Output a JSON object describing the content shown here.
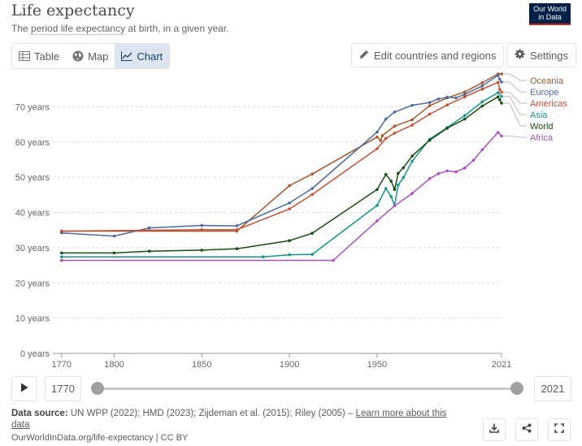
{
  "header": {
    "title": "Life expectancy",
    "subtitle_prefix": "The ",
    "subtitle_term": "period life expectancy",
    "subtitle_suffix": " at birth, in a given year.",
    "logo_line1": "Our World",
    "logo_line2": "in Data"
  },
  "tabs": [
    {
      "label": "Table",
      "icon": "table-icon"
    },
    {
      "label": "Map",
      "icon": "globe-icon"
    },
    {
      "label": "Chart",
      "icon": "line-chart-icon",
      "active": true
    }
  ],
  "toolbar": {
    "edit_label": "Edit countries and regions",
    "settings_label": "Settings"
  },
  "timeline": {
    "start_year": "1770",
    "end_year": "2021"
  },
  "footer": {
    "source_label": "Data source:",
    "source_text": " UN WPP (2022); HMD (2023); Zijdeman et al. (2015); Riley (2005) – ",
    "learn_more": "Learn more about this data",
    "url": "OurWorldInData.org/life-expectancy | CC BY"
  },
  "colors": {
    "Oceania": "#a2572f",
    "Europe": "#4c6a9c",
    "Americas": "#c15035",
    "Asia": "#18928b",
    "World": "#194d12",
    "Africa": "#a652ba"
  },
  "chart_data": {
    "type": "line",
    "ylim": [
      0,
      80
    ],
    "xlim": [
      1765,
      2021
    ],
    "y_ticks": [
      0,
      10,
      20,
      30,
      40,
      50,
      60,
      70
    ],
    "y_tick_labels": [
      "0 years",
      "10 years",
      "20 years",
      "30 years",
      "40 years",
      "50 years",
      "60 years",
      "70 years"
    ],
    "x_ticks": [
      1770,
      1800,
      1850,
      1900,
      1950,
      2021
    ],
    "x_tick_labels": [
      "1770",
      "1800",
      "1850",
      "1900",
      "1950",
      "2021"
    ],
    "grid": "horizontal dotted",
    "legend_placement": "right (end labels)",
    "series": [
      {
        "name": "Oceania",
        "points": [
          [
            1770,
            34.7
          ],
          [
            1870,
            34.7
          ],
          [
            1900,
            47.6
          ],
          [
            1913,
            50.9
          ],
          [
            1950,
            61.4
          ],
          [
            1952,
            60.4
          ],
          [
            1953,
            61.8
          ],
          [
            1960,
            64.5
          ],
          [
            1970,
            66.3
          ],
          [
            1980,
            70.3
          ],
          [
            1990,
            72.5
          ],
          [
            2000,
            74.2
          ],
          [
            2010,
            76.8
          ],
          [
            2019,
            79.3
          ],
          [
            2021,
            79.3
          ]
        ]
      },
      {
        "name": "Europe",
        "points": [
          [
            1770,
            34.2
          ],
          [
            1800,
            33.3
          ],
          [
            1820,
            35.6
          ],
          [
            1850,
            36.3
          ],
          [
            1870,
            36.2
          ],
          [
            1900,
            42.7
          ],
          [
            1913,
            46.8
          ],
          [
            1950,
            62.8
          ],
          [
            1955,
            66.5
          ],
          [
            1960,
            68.5
          ],
          [
            1970,
            70.4
          ],
          [
            1980,
            71.2
          ],
          [
            1985,
            72.2
          ],
          [
            1990,
            72.7
          ],
          [
            1995,
            72.5
          ],
          [
            2000,
            73.5
          ],
          [
            2010,
            75.9
          ],
          [
            2019,
            78.9
          ],
          [
            2020,
            77.8
          ],
          [
            2021,
            77.0
          ]
        ]
      },
      {
        "name": "Americas",
        "points": [
          [
            1770,
            34.7
          ],
          [
            1850,
            35.1
          ],
          [
            1870,
            35.1
          ],
          [
            1900,
            41.0
          ],
          [
            1913,
            45.1
          ],
          [
            1950,
            58.1
          ],
          [
            1955,
            61.0
          ],
          [
            1960,
            62.5
          ],
          [
            1970,
            64.8
          ],
          [
            1980,
            67.9
          ],
          [
            1990,
            70.5
          ],
          [
            2000,
            72.8
          ],
          [
            2010,
            75.0
          ],
          [
            2019,
            76.9
          ],
          [
            2020,
            74.9
          ],
          [
            2021,
            74.1
          ]
        ]
      },
      {
        "name": "Asia",
        "points": [
          [
            1770,
            27.4
          ],
          [
            1885,
            27.4
          ],
          [
            1900,
            28.0
          ],
          [
            1913,
            28.1
          ],
          [
            1950,
            42.0
          ],
          [
            1955,
            46.8
          ],
          [
            1958,
            44.5
          ],
          [
            1960,
            42.0
          ],
          [
            1962,
            47.8
          ],
          [
            1965,
            49.9
          ],
          [
            1970,
            54.5
          ],
          [
            1980,
            60.8
          ],
          [
            1990,
            64.1
          ],
          [
            2000,
            67.5
          ],
          [
            2010,
            71.4
          ],
          [
            2019,
            74.0
          ],
          [
            2021,
            72.9
          ]
        ]
      },
      {
        "name": "World",
        "points": [
          [
            1770,
            28.5
          ],
          [
            1800,
            28.5
          ],
          [
            1820,
            29.0
          ],
          [
            1850,
            29.3
          ],
          [
            1870,
            29.7
          ],
          [
            1900,
            32.0
          ],
          [
            1913,
            34.1
          ],
          [
            1950,
            46.5
          ],
          [
            1955,
            50.8
          ],
          [
            1958,
            48.9
          ],
          [
            1960,
            46.5
          ],
          [
            1962,
            51.1
          ],
          [
            1965,
            52.7
          ],
          [
            1970,
            56.0
          ],
          [
            1980,
            60.5
          ],
          [
            1990,
            63.9
          ],
          [
            2000,
            66.5
          ],
          [
            2010,
            70.2
          ],
          [
            2019,
            72.8
          ],
          [
            2020,
            72.0
          ],
          [
            2021,
            71.0
          ]
        ]
      },
      {
        "name": "Africa",
        "points": [
          [
            1770,
            26.4
          ],
          [
            1925,
            26.4
          ],
          [
            1950,
            37.6
          ],
          [
            1960,
            41.9
          ],
          [
            1970,
            45.4
          ],
          [
            1980,
            49.6
          ],
          [
            1985,
            51.0
          ],
          [
            1990,
            51.8
          ],
          [
            1995,
            51.5
          ],
          [
            2000,
            52.6
          ],
          [
            2005,
            54.8
          ],
          [
            2010,
            57.8
          ],
          [
            2019,
            62.7
          ],
          [
            2021,
            61.7
          ]
        ]
      }
    ]
  }
}
